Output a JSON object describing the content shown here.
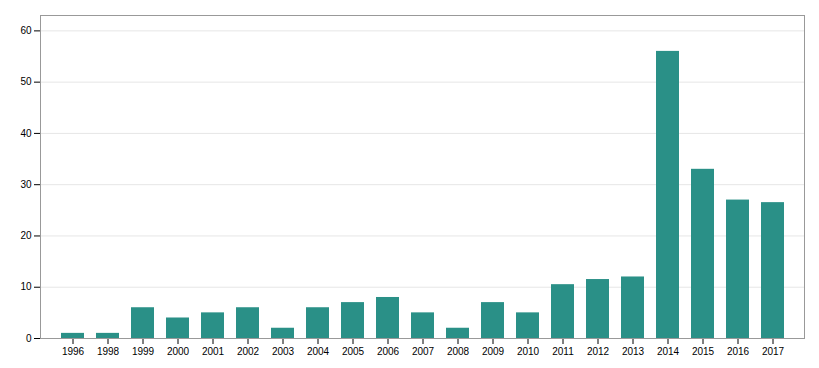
{
  "chart_data": {
    "type": "bar",
    "categories": [
      "1996",
      "1998",
      "1999",
      "2000",
      "2001",
      "2002",
      "2003",
      "2004",
      "2005",
      "2006",
      "2007",
      "2008",
      "2009",
      "2010",
      "2011",
      "2012",
      "2013",
      "2014",
      "2015",
      "2016",
      "2017"
    ],
    "values": [
      1,
      1,
      6,
      4,
      5,
      6,
      2,
      6,
      7,
      8,
      5,
      2,
      7,
      5,
      10.5,
      11.5,
      12,
      56,
      33,
      27,
      26.5
    ],
    "color": "#2a9087",
    "ylim": [
      0,
      63
    ],
    "yticks": [
      0,
      10,
      20,
      30,
      40,
      50,
      60
    ],
    "grid": true
  }
}
